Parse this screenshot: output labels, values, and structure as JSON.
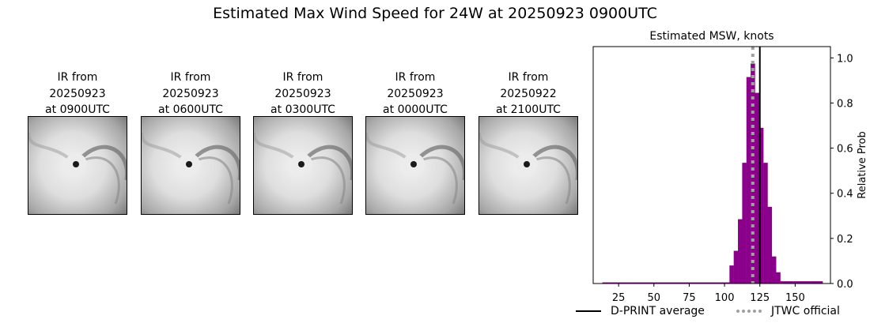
{
  "title": "Estimated Max Wind Speed for 24W at 20250923 0900UTC",
  "ir_panels": [
    {
      "line1": "IR from",
      "line2": "20250923",
      "line3": "at 0900UTC"
    },
    {
      "line1": "IR from",
      "line2": "20250923",
      "line3": "at 0600UTC"
    },
    {
      "line1": "IR from",
      "line2": "20250923",
      "line3": "at 0300UTC"
    },
    {
      "line1": "IR from",
      "line2": "20250923",
      "line3": "at 0000UTC"
    },
    {
      "line1": "IR from",
      "line2": "20250922",
      "line3": "at 2100UTC"
    }
  ],
  "legend": {
    "dprint_label": "D-PRINT average",
    "jtwc_label": "JTWC official"
  },
  "chart_data": {
    "type": "bar",
    "title": "Estimated MSW, knots",
    "xlabel": "",
    "ylabel": "Relative Prob",
    "xlim": [
      7,
      175
    ],
    "ylim": [
      0,
      1.05
    ],
    "xticks": [
      25,
      50,
      75,
      100,
      125,
      150
    ],
    "yticks": [
      0.0,
      0.2,
      0.4,
      0.6,
      0.8,
      1.0
    ],
    "bar_color": "#8b008b",
    "bin_width": 3,
    "bins_x": [
      15,
      18,
      21,
      24,
      27,
      30,
      33,
      36,
      39,
      42,
      45,
      48,
      51,
      54,
      57,
      60,
      63,
      66,
      69,
      72,
      75,
      78,
      81,
      84,
      87,
      90,
      93,
      96,
      99,
      102,
      105,
      108,
      111,
      114,
      117,
      120,
      123,
      126,
      129,
      132,
      135,
      138,
      141,
      144,
      147,
      150,
      153,
      156,
      159,
      162,
      165,
      168
    ],
    "bins_y": [
      0.005,
      0.005,
      0.005,
      0.005,
      0.005,
      0.005,
      0.005,
      0.005,
      0.005,
      0.005,
      0.005,
      0.005,
      0.005,
      0.005,
      0.005,
      0.005,
      0.005,
      0.005,
      0.005,
      0.005,
      0.005,
      0.005,
      0.005,
      0.005,
      0.005,
      0.005,
      0.005,
      0.005,
      0.005,
      0.005,
      0.08,
      0.145,
      0.285,
      0.535,
      0.915,
      0.975,
      0.845,
      0.69,
      0.535,
      0.34,
      0.12,
      0.05,
      0.01,
      0.01,
      0.01,
      0.01,
      0.01,
      0.01,
      0.01,
      0.01,
      0.01,
      0.01
    ],
    "dprint_average": 125,
    "jtwc_official": 120,
    "dprint_color": "#000000",
    "jtwc_color": "#a0a0a0"
  }
}
